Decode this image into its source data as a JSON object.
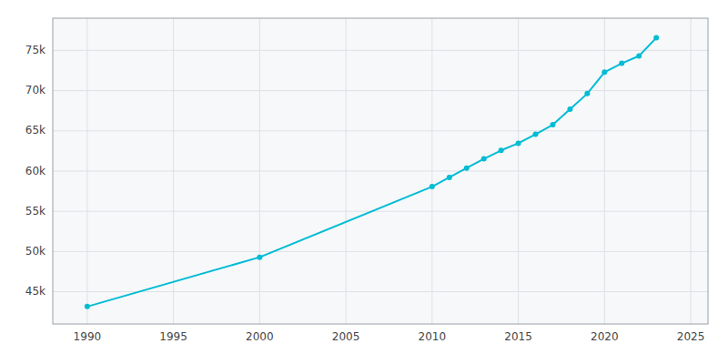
{
  "chart_data": {
    "type": "line",
    "x": [
      1990,
      2000,
      2010,
      2011,
      2012,
      2013,
      2014,
      2015,
      2016,
      2017,
      2018,
      2019,
      2020,
      2021,
      2022,
      2023
    ],
    "values": [
      43165,
      49296,
      58067,
      59209,
      60373,
      61515,
      62568,
      63460,
      64574,
      65765,
      67680,
      69628,
      72294,
      73394,
      74311,
      76561
    ],
    "color": "#00BCD4",
    "marker": "circle",
    "xlim": [
      1988,
      2026
    ],
    "ylim": [
      41000,
      79000
    ],
    "xticks": [
      1990,
      1995,
      2000,
      2005,
      2010,
      2015,
      2020,
      2025
    ],
    "yticks": [
      {
        "value": 45000,
        "label": "45k"
      },
      {
        "value": 50000,
        "label": "50k"
      },
      {
        "value": 55000,
        "label": "55k"
      },
      {
        "value": 60000,
        "label": "60k"
      },
      {
        "value": 65000,
        "label": "65k"
      },
      {
        "value": 70000,
        "label": "70k"
      },
      {
        "value": 75000,
        "label": "75k"
      }
    ],
    "grid": true
  }
}
